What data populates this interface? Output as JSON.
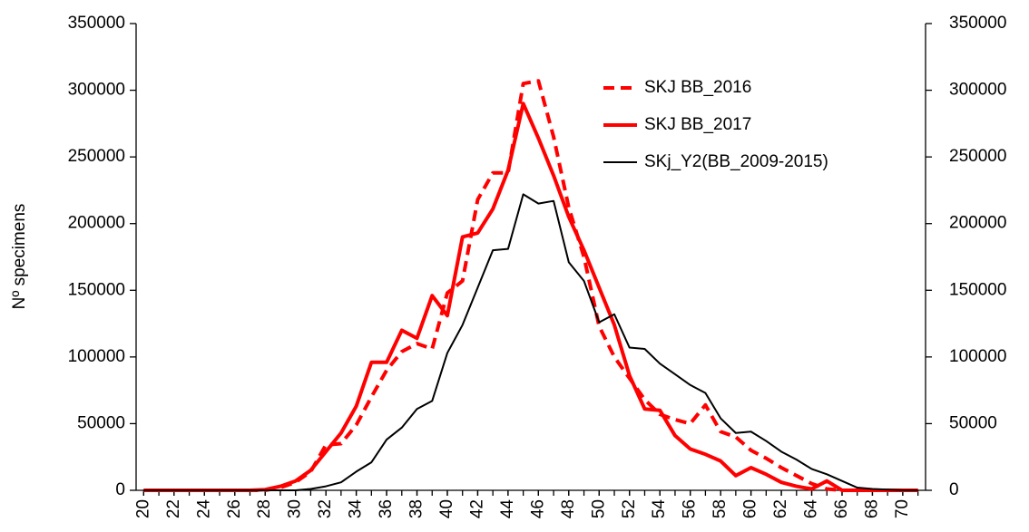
{
  "chart_data": {
    "type": "line",
    "y_label": "Nº specimens",
    "x": [
      20,
      21,
      22,
      23,
      24,
      25,
      26,
      27,
      28,
      29,
      30,
      31,
      32,
      33,
      34,
      35,
      36,
      37,
      38,
      39,
      40,
      41,
      42,
      43,
      44,
      45,
      46,
      47,
      48,
      49,
      50,
      51,
      52,
      53,
      54,
      55,
      56,
      57,
      58,
      59,
      60,
      61,
      62,
      63,
      64,
      65,
      66,
      67,
      68,
      69,
      70,
      71
    ],
    "xlim": [
      19.5,
      71.5
    ],
    "xticks": [
      20,
      22,
      24,
      26,
      28,
      30,
      32,
      34,
      36,
      38,
      40,
      42,
      44,
      46,
      48,
      50,
      52,
      54,
      56,
      58,
      60,
      62,
      64,
      66,
      68,
      70
    ],
    "ylim": [
      0,
      350000
    ],
    "yticks": [
      0,
      50000,
      100000,
      150000,
      200000,
      250000,
      300000,
      350000
    ],
    "y2lim": [
      0,
      350000
    ],
    "y2ticks": [
      0,
      50000,
      100000,
      150000,
      200000,
      250000,
      300000,
      350000
    ],
    "legend": "upper right",
    "series": [
      {
        "name": "SKJ BB_2016",
        "color": "#ff0000",
        "style": "dashed",
        "width": 4,
        "values": [
          0,
          0,
          0,
          0,
          0,
          0,
          0,
          0,
          0,
          2000,
          6000,
          14000,
          34000,
          35000,
          49000,
          70000,
          90000,
          104000,
          110000,
          106000,
          148000,
          157000,
          218000,
          238000,
          238000,
          305000,
          307000,
          265000,
          212000,
          175000,
          123000,
          100000,
          84000,
          68000,
          57000,
          53000,
          50000,
          64000,
          44000,
          40000,
          30000,
          24000,
          17000,
          11000,
          5000,
          1000,
          0,
          0,
          0,
          0,
          0,
          0
        ]
      },
      {
        "name": "SKJ BB_2017",
        "color": "#ff0000",
        "style": "solid",
        "width": 4,
        "values": [
          0,
          0,
          0,
          0,
          0,
          0,
          0,
          0,
          500,
          3000,
          7000,
          15000,
          29000,
          43000,
          63000,
          96000,
          96000,
          120000,
          114000,
          146000,
          131000,
          190000,
          193000,
          211000,
          240000,
          290000,
          264000,
          236000,
          205000,
          180000,
          152000,
          124000,
          86000,
          61000,
          60000,
          41000,
          31000,
          27000,
          22000,
          11000,
          17000,
          12000,
          6000,
          3000,
          1000,
          7000,
          0,
          0,
          0,
          0,
          0,
          0
        ]
      },
      {
        "name": "SKj_Y2(BB_2009-2015)",
        "color": "#000000",
        "style": "solid",
        "width": 2,
        "values": [
          0,
          0,
          0,
          0,
          0,
          0,
          0,
          0,
          0,
          0,
          0,
          1000,
          3000,
          6000,
          14000,
          21000,
          38000,
          47000,
          61000,
          67000,
          103000,
          124000,
          152000,
          180000,
          181000,
          222000,
          215000,
          217000,
          171000,
          157000,
          126000,
          132000,
          107000,
          106000,
          95000,
          87000,
          79000,
          73000,
          54000,
          43000,
          44000,
          37000,
          29000,
          23000,
          16000,
          12000,
          7000,
          2000,
          1000,
          500,
          0,
          0
        ]
      }
    ]
  }
}
